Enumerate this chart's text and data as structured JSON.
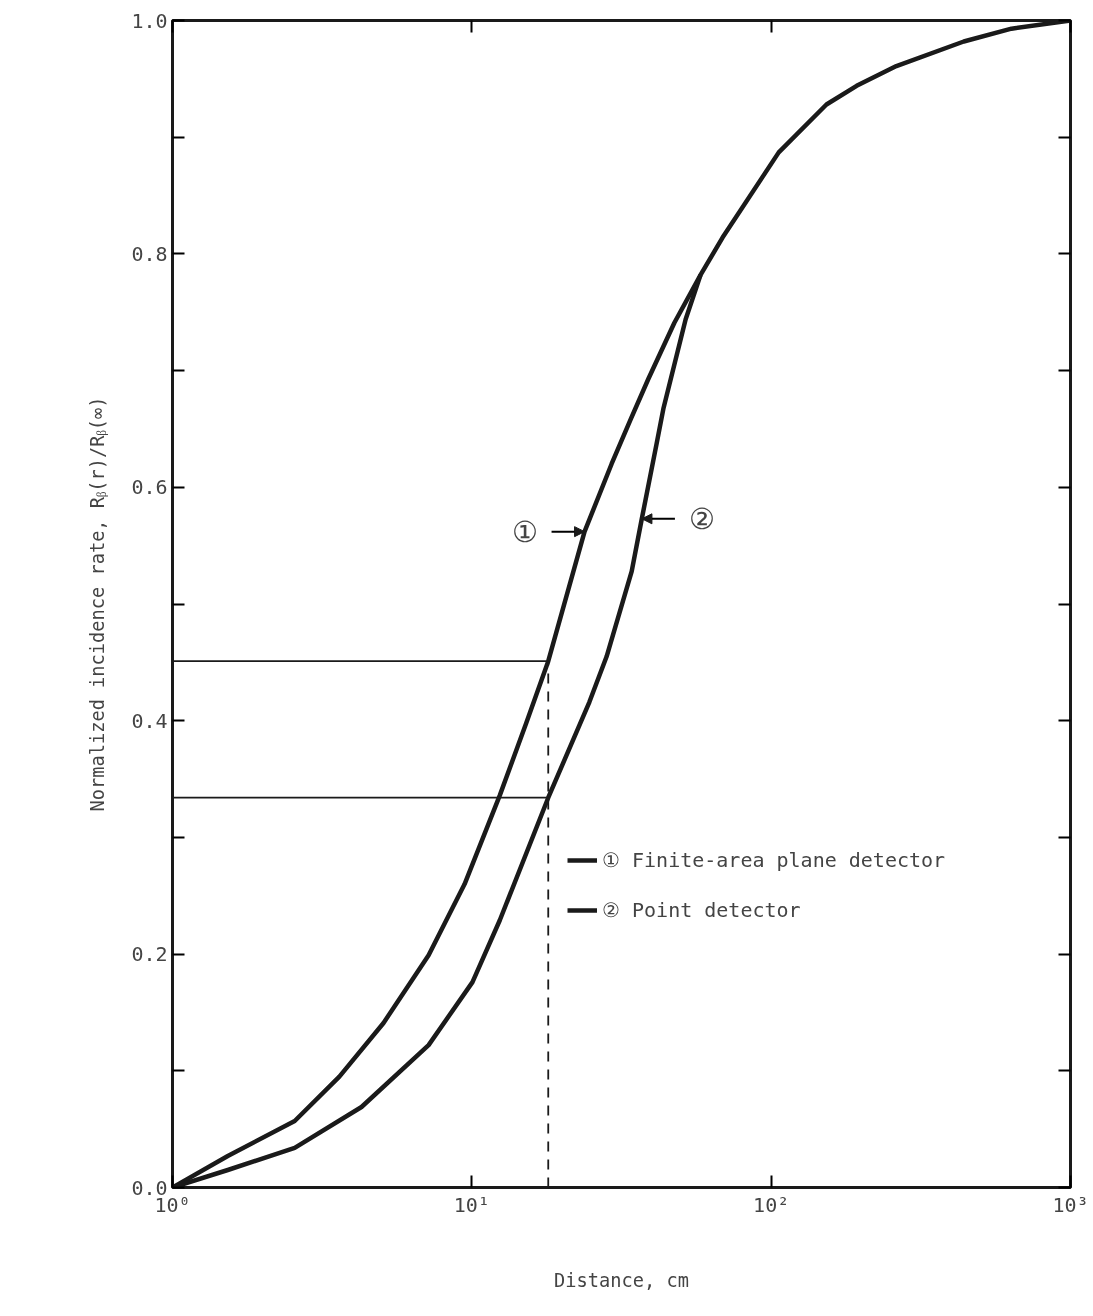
{
  "chart_data": {
    "type": "line",
    "xlabel": "Distance, cm",
    "ylabel": "Normalized incidence rate, Rᵦ(r)/Rᵦ(∞)",
    "log": "x",
    "xlim": [
      1,
      1000
    ],
    "ylim": [
      0,
      1
    ],
    "xticks": [
      {
        "value": 1,
        "label": "10⁰"
      },
      {
        "value": 10,
        "label": "10¹"
      },
      {
        "value": 100,
        "label": "10²"
      },
      {
        "value": 1000,
        "label": "10³"
      }
    ],
    "yticks": [
      {
        "value": 0,
        "label": "0.0"
      },
      {
        "value": 0.1,
        "label": null
      },
      {
        "value": 0.2,
        "label": "0.2"
      },
      {
        "value": 0.3,
        "label": null
      },
      {
        "value": 0.4,
        "label": "0.4"
      },
      {
        "value": 0.5,
        "label": null
      },
      {
        "value": 0.6,
        "label": "0.6"
      },
      {
        "value": 0.7,
        "label": null
      },
      {
        "value": 0.8,
        "label": "0.8"
      },
      {
        "value": 0.9,
        "label": null
      },
      {
        "value": 1,
        "label": "1.0"
      }
    ],
    "grid": false,
    "legend": "right",
    "line_style": "solid",
    "marker": "none",
    "series": [
      {
        "name": "① Finite-area plane detector",
        "color": "#1a1a1a",
        "x": [
          1,
          1.53,
          2.56,
          3.61,
          5.07,
          7.17,
          9.46,
          12.4,
          15.2,
          18.0,
          23.8,
          29.3,
          33.9,
          38.9,
          47.5,
          58.1,
          68.8,
          106,
          153,
          193,
          262,
          440,
          635,
          1000
        ],
        "values": [
          0,
          0.027,
          0.057,
          0.095,
          0.141,
          0.199,
          0.26,
          0.336,
          0.398,
          0.451,
          0.562,
          0.62,
          0.658,
          0.693,
          0.741,
          0.782,
          0.814,
          0.887,
          0.928,
          0.944,
          0.961,
          0.982,
          0.993,
          1.0
        ]
      },
      {
        "name": "② Point detector",
        "color": "#1a1a1a",
        "x": [
          1,
          1.53,
          2.56,
          4.28,
          7.17,
          10.05,
          12.4,
          18.0,
          24.7,
          28.2,
          34.2,
          36.9,
          41.4,
          43.7,
          51.8,
          58.1
        ],
        "values": [
          0,
          0.015,
          0.034,
          0.069,
          0.122,
          0.176,
          0.229,
          0.334,
          0.416,
          0.455,
          0.528,
          0.572,
          0.637,
          0.668,
          0.744,
          0.782
        ]
      }
    ],
    "ref_lines": [
      {
        "axis": "x",
        "value": 18.0,
        "line_style": "dashed",
        "color": "#1a1a1a"
      },
      {
        "axis": "y",
        "value": 0.451,
        "color": "#1a1a1a"
      },
      {
        "axis": "y",
        "value": 0.334,
        "color": "#1a1a1a"
      }
    ],
    "annotations": [
      {
        "text": "①",
        "x": 23.8,
        "y": 0.562
      },
      {
        "text": "②",
        "x": 37,
        "y": 0.573
      }
    ]
  }
}
